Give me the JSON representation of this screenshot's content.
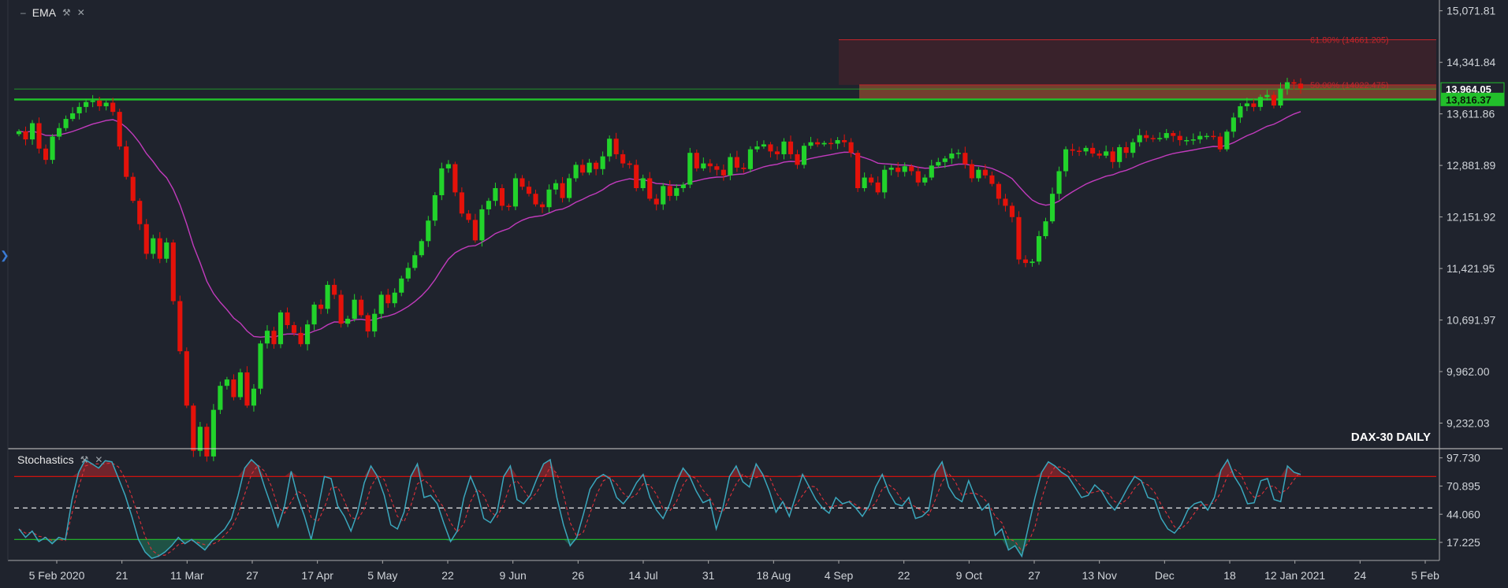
{
  "colors": {
    "background": "#1f232d",
    "up": "#22d32b",
    "down": "#e4120a",
    "ema": "#c23bbd",
    "fib_line": "#c5242a",
    "stoch_k": "#3aa7bd",
    "stoch_d": "#e0313a",
    "support": "#22c02b"
  },
  "indicators": {
    "ema": {
      "label": "EMA",
      "settings_icon": "wrench-icon",
      "close_icon": "close-icon"
    },
    "stochastics": {
      "label": "Stochastics",
      "settings_icon": "wrench-icon",
      "close_icon": "close-icon"
    }
  },
  "chart_data": [
    {
      "type": "candlestick",
      "title": "DAX-30 DAILY",
      "x_tick_labels": [
        "5 Feb 2020",
        "21",
        "11 Mar",
        "27",
        "17 Apr",
        "5 May",
        "22",
        "9 Jun",
        "26",
        "14 Jul",
        "31",
        "18 Aug",
        "4 Sep",
        "22",
        "9 Oct",
        "27",
        "13 Nov",
        "Dec",
        "18",
        "12 Jan 2021",
        "24",
        "5 Feb"
      ],
      "y_tick_labels": [
        "15,071.81",
        "14,341.84",
        "13,611.86",
        "12,881.89",
        "12,151.92",
        "11,421.95",
        "10,691.97",
        "9,962.00",
        "9,232.03"
      ],
      "ylim": [
        8870,
        15180
      ],
      "price_labels": [
        {
          "value": 13964.05,
          "text": "13,964.05",
          "color": "#1f232d"
        },
        {
          "value": 13816.37,
          "text": "13,816.37",
          "color": "#22c02b"
        }
      ],
      "support_level": 13816.37,
      "fibonacci": [
        {
          "level_text": "61.80% (14661.205)",
          "value": 14661.205
        },
        {
          "level_text": "50.00% (14022.475)",
          "value": 14022.475
        }
      ],
      "series": [
        {
          "name": "DAX-30 DAILY",
          "kind": "ohlc",
          "close": [
            13365,
            13250,
            13480,
            13120,
            12960,
            13290,
            13410,
            13540,
            13620,
            13710,
            13780,
            13800,
            13720,
            13770,
            13640,
            13150,
            12720,
            12380,
            12050,
            11630,
            11850,
            11560,
            11790,
            10960,
            10250,
            9480,
            8840,
            9180,
            8760,
            9420,
            9760,
            9850,
            9600,
            9950,
            9480,
            9720,
            10360,
            10540,
            10350,
            10800,
            10620,
            10510,
            10350,
            10630,
            10910,
            10850,
            11190,
            11050,
            10640,
            10710,
            10980,
            10760,
            10530,
            10780,
            11050,
            10930,
            11080,
            11280,
            11430,
            11610,
            11810,
            12100,
            12460,
            12840,
            12900,
            12500,
            12200,
            12110,
            11820,
            12260,
            12380,
            12560,
            12310,
            12300,
            12700,
            12580,
            12480,
            12330,
            12290,
            12540,
            12630,
            12420,
            12700,
            12890,
            12780,
            12920,
            12830,
            13010,
            13260,
            13040,
            12910,
            12890,
            12560,
            12700,
            12410,
            12330,
            12590,
            12450,
            12560,
            12610,
            13060,
            12840,
            12910,
            12870,
            12820,
            12740,
            13000,
            12850,
            12830,
            13110,
            13150,
            13180,
            13080,
            13040,
            13220,
            13040,
            12890,
            13160,
            13210,
            13180,
            13200,
            13190,
            13240,
            13210,
            13060,
            12560,
            12710,
            12640,
            12500,
            12820,
            12850,
            12790,
            12870,
            12800,
            12640,
            12710,
            12880,
            12930,
            12980,
            13050,
            13060,
            12900,
            12700,
            12820,
            12740,
            12620,
            12410,
            12310,
            12150,
            11550,
            11500,
            11520,
            11880,
            12090,
            12480,
            12800,
            13110,
            13090,
            13080,
            13130,
            13050,
            13020,
            13080,
            12930,
            13140,
            13060,
            13210,
            13310,
            13270,
            13260,
            13270,
            13340,
            13300,
            13240,
            13240,
            13250,
            13300,
            13300,
            13290,
            13110,
            13360,
            13560,
            13720,
            13760,
            13710,
            13850,
            13880,
            13730,
            13970,
            14060,
            14040,
            13970
          ]
        }
      ]
    },
    {
      "type": "line",
      "title": "Stochastics",
      "y_tick_labels": [
        "97.730",
        "70.895",
        "44.060",
        "17.225"
      ],
      "ylim": [
        0,
        105
      ],
      "overbought": 80,
      "oversold": 20,
      "midline": 50,
      "series": [
        {
          "name": "%K",
          "values": [
            30,
            22,
            28,
            18,
            22,
            16,
            22,
            20,
            58,
            84,
            96,
            92,
            88,
            95,
            94,
            78,
            62,
            42,
            20,
            8,
            2,
            4,
            8,
            14,
            22,
            16,
            20,
            15,
            10,
            18,
            24,
            30,
            40,
            62,
            88,
            96,
            90,
            70,
            52,
            32,
            52,
            85,
            60,
            42,
            20,
            48,
            80,
            78,
            52,
            42,
            28,
            46,
            74,
            90,
            80,
            62,
            34,
            30,
            46,
            80,
            92,
            60,
            62,
            54,
            35,
            18,
            28,
            60,
            80,
            65,
            40,
            36,
            46,
            80,
            90,
            58,
            54,
            62,
            78,
            92,
            96,
            60,
            34,
            14,
            22,
            44,
            68,
            78,
            82,
            78,
            60,
            54,
            62,
            74,
            82,
            60,
            48,
            40,
            54,
            74,
            88,
            80,
            66,
            55,
            58,
            30,
            50,
            80,
            90,
            75,
            70,
            92,
            82,
            66,
            46,
            56,
            42,
            62,
            82,
            70,
            58,
            50,
            45,
            60,
            54,
            56,
            50,
            42,
            52,
            70,
            82,
            65,
            54,
            52,
            60,
            40,
            42,
            48,
            84,
            94,
            70,
            60,
            56,
            76,
            60,
            48,
            54,
            24,
            30,
            10,
            14,
            4,
            32,
            60,
            84,
            94,
            90,
            84,
            80,
            70,
            60,
            62,
            72,
            66,
            55,
            48,
            58,
            70,
            80,
            76,
            60,
            58,
            40,
            30,
            26,
            34,
            48,
            54,
            56,
            48,
            60,
            86,
            96,
            80,
            70,
            54,
            55,
            76,
            78,
            58,
            56,
            90,
            84,
            82
          ]
        },
        {
          "name": "%D",
          "values": [
            30,
            26,
            27,
            23,
            22,
            19,
            20,
            19,
            45,
            70,
            90,
            92,
            92,
            92,
            93,
            89,
            78,
            61,
            42,
            23,
            10,
            5,
            5,
            9,
            15,
            17,
            19,
            17,
            15,
            15,
            18,
            24,
            31,
            44,
            63,
            82,
            91,
            85,
            71,
            51,
            45,
            56,
            66,
            62,
            41,
            37,
            50,
            69,
            70,
            57,
            41,
            39,
            49,
            70,
            81,
            77,
            59,
            42,
            37,
            52,
            73,
            77,
            71,
            59,
            50,
            36,
            27,
            35,
            56,
            68,
            62,
            47,
            41,
            54,
            72,
            76,
            67,
            58,
            65,
            77,
            89,
            83,
            63,
            36,
            23,
            27,
            45,
            63,
            76,
            79,
            73,
            64,
            59,
            63,
            73,
            72,
            63,
            49,
            47,
            56,
            72,
            81,
            78,
            67,
            60,
            48,
            46,
            60,
            73,
            82,
            78,
            79,
            81,
            80,
            65,
            56,
            48,
            53,
            62,
            71,
            70,
            59,
            51,
            52,
            53,
            57,
            53,
            49,
            48,
            55,
            68,
            72,
            67,
            57,
            55,
            51,
            47,
            43,
            58,
            75,
            83,
            75,
            62,
            64,
            64,
            61,
            54,
            42,
            36,
            21,
            18,
            9,
            17,
            32,
            59,
            79,
            89,
            89,
            85,
            78,
            70,
            64,
            65,
            67,
            64,
            56,
            54,
            59,
            69,
            75,
            72,
            65,
            53,
            43,
            32,
            30,
            36,
            45,
            53,
            53,
            55,
            65,
            81,
            87,
            82,
            68,
            60,
            62,
            70,
            71,
            64,
            68,
            77,
            85
          ]
        }
      ]
    }
  ]
}
